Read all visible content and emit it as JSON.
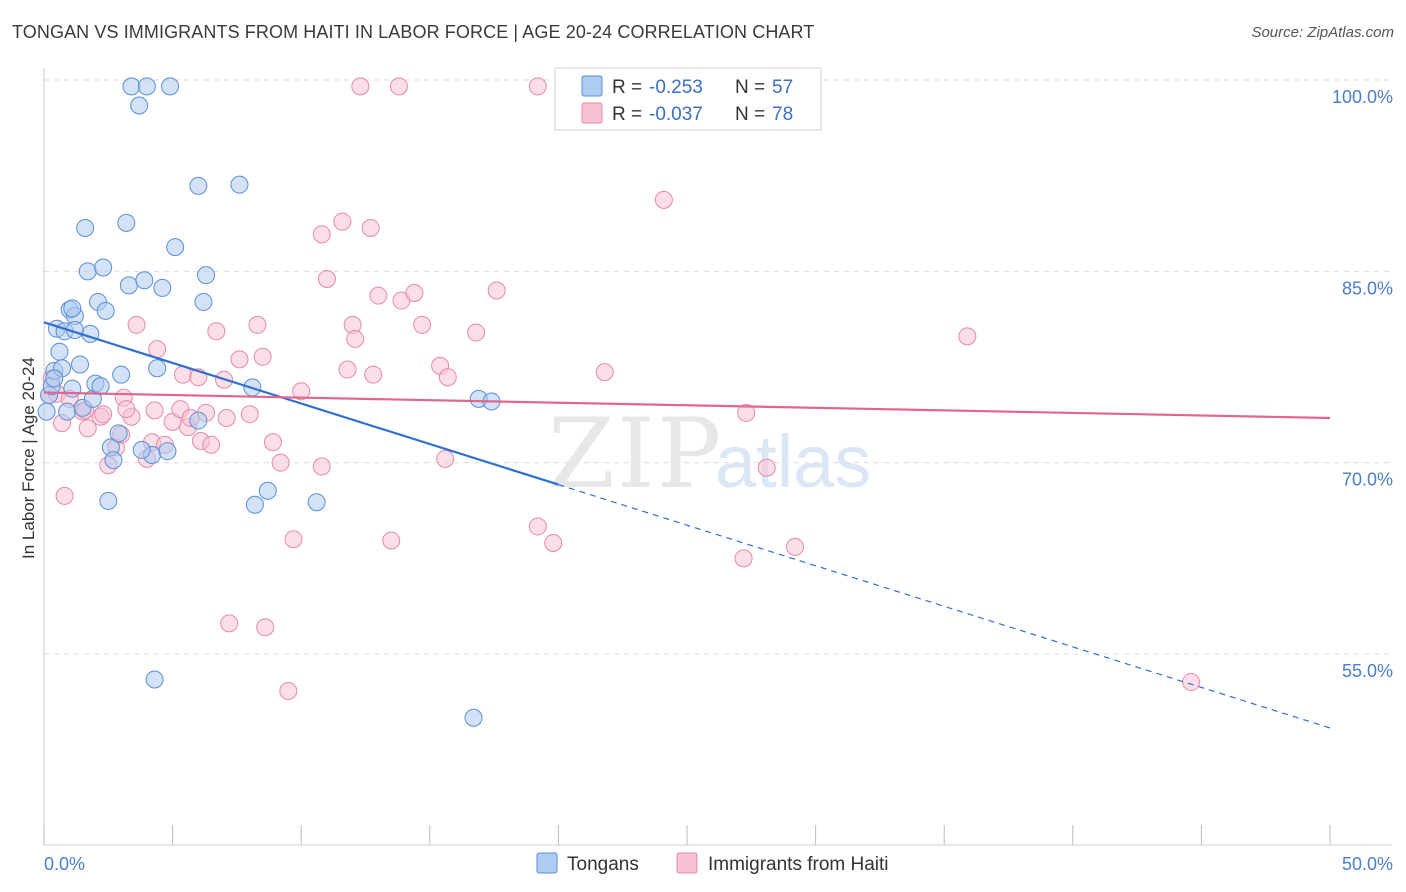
{
  "title": "TONGAN VS IMMIGRANTS FROM HAITI IN LABOR FORCE | AGE 20-24 CORRELATION CHART",
  "source": "Source: ZipAtlas.com",
  "watermark": {
    "zip": "ZIP",
    "atlas": "atlas"
  },
  "legend_box": {
    "rows": [
      {
        "r_label": "R = ",
        "r_value": "-0.253",
        "n_label": "N = ",
        "n_value": "57"
      },
      {
        "r_label": "R = ",
        "r_value": "-0.037",
        "n_label": "N = ",
        "n_value": "78"
      }
    ]
  },
  "bottom_legend": [
    "Tongans",
    "Immigrants from Haiti"
  ],
  "colors": {
    "blue_fill": "#aecbf0",
    "blue_stroke": "#5b8fd6",
    "blue_line": "#2f6fd0",
    "pink_fill": "#f7c3d3",
    "pink_stroke": "#e68aa8",
    "pink_line": "#e0668e",
    "tick_text": "#4a7ec9",
    "grid": "#dcdcdc"
  },
  "chart_data": {
    "type": "scatter",
    "title": "TONGAN VS IMMIGRANTS FROM HAITI IN LABOR FORCE | AGE 20-24 CORRELATION CHART",
    "xlabel": "",
    "ylabel": "In Labor Force | Age 20-24",
    "xlim": [
      0,
      50
    ],
    "ylim": [
      35,
      102
    ],
    "x_tick_labels": [
      "0.0%",
      "50.0%"
    ],
    "y_ticks": [
      55,
      70,
      85,
      100
    ],
    "y_tick_labels": [
      "55.0%",
      "70.0%",
      "85.0%",
      "100.0%"
    ],
    "grid": true,
    "legend_position": "top-center",
    "series": [
      {
        "name": "Tongans",
        "color": "#aecbf0",
        "r": -0.253,
        "n": 57,
        "trend": {
          "x0": 0,
          "y0": 81.0,
          "x_solid_end": 20,
          "x1": 50,
          "y1": 49.2
        },
        "points": [
          [
            0.1,
            74.0
          ],
          [
            0.2,
            75.3
          ],
          [
            0.3,
            76.0
          ],
          [
            0.4,
            77.2
          ],
          [
            0.5,
            80.5
          ],
          [
            0.6,
            78.7
          ],
          [
            0.8,
            80.3
          ],
          [
            0.9,
            74.0
          ],
          [
            1.0,
            82.0
          ],
          [
            1.1,
            75.8
          ],
          [
            1.2,
            81.5
          ],
          [
            1.4,
            77.7
          ],
          [
            1.5,
            74.3
          ],
          [
            1.7,
            85.0
          ],
          [
            1.8,
            80.1
          ],
          [
            1.9,
            75.0
          ],
          [
            2.0,
            76.2
          ],
          [
            2.1,
            82.6
          ],
          [
            2.2,
            76.0
          ],
          [
            2.3,
            85.3
          ],
          [
            2.4,
            81.9
          ],
          [
            2.6,
            71.2
          ],
          [
            2.7,
            70.2
          ],
          [
            3.0,
            76.9
          ],
          [
            3.2,
            88.8
          ],
          [
            3.3,
            83.9
          ],
          [
            3.4,
            99.5
          ],
          [
            3.7,
            98.0
          ],
          [
            3.9,
            84.3
          ],
          [
            4.0,
            99.5
          ],
          [
            4.2,
            70.6
          ],
          [
            4.4,
            77.4
          ],
          [
            4.6,
            83.7
          ],
          [
            4.8,
            70.9
          ],
          [
            4.9,
            99.5
          ],
          [
            5.1,
            86.9
          ],
          [
            6.0,
            73.3
          ],
          [
            6.0,
            91.7
          ],
          [
            6.2,
            82.6
          ],
          [
            6.3,
            84.7
          ],
          [
            7.6,
            91.8
          ],
          [
            8.1,
            75.9
          ],
          [
            8.2,
            66.7
          ],
          [
            8.7,
            67.8
          ],
          [
            10.6,
            66.9
          ],
          [
            16.9,
            75.0
          ],
          [
            17.4,
            74.8
          ],
          [
            4.3,
            53.0
          ],
          [
            16.7,
            50.0
          ],
          [
            1.2,
            80.4
          ],
          [
            0.7,
            77.4
          ],
          [
            2.5,
            67.0
          ],
          [
            1.6,
            88.4
          ],
          [
            2.9,
            72.3
          ],
          [
            0.4,
            76.6
          ],
          [
            3.8,
            71.0
          ],
          [
            1.1,
            82.1
          ]
        ]
      },
      {
        "name": "Immigrants from Haiti",
        "color": "#f7c3d3",
        "r": -0.037,
        "n": 78,
        "trend": {
          "x0": 0,
          "y0": 75.5,
          "x1": 50,
          "y1": 73.5
        },
        "points": [
          [
            0.2,
            75.3
          ],
          [
            0.3,
            76.6
          ],
          [
            0.5,
            75.4
          ],
          [
            0.7,
            73.1
          ],
          [
            0.8,
            67.4
          ],
          [
            1.0,
            75.0
          ],
          [
            1.5,
            74.0
          ],
          [
            1.7,
            72.7
          ],
          [
            2.2,
            73.6
          ],
          [
            2.5,
            69.8
          ],
          [
            2.8,
            71.2
          ],
          [
            3.0,
            72.2
          ],
          [
            3.1,
            75.1
          ],
          [
            3.4,
            73.6
          ],
          [
            3.6,
            80.8
          ],
          [
            4.0,
            70.3
          ],
          [
            4.2,
            71.6
          ],
          [
            4.3,
            74.1
          ],
          [
            4.4,
            78.9
          ],
          [
            4.7,
            71.4
          ],
          [
            5.0,
            73.2
          ],
          [
            5.3,
            74.2
          ],
          [
            5.4,
            76.9
          ],
          [
            5.6,
            72.8
          ],
          [
            5.7,
            73.5
          ],
          [
            6.0,
            76.7
          ],
          [
            6.1,
            71.7
          ],
          [
            6.3,
            73.9
          ],
          [
            6.5,
            71.4
          ],
          [
            6.7,
            80.3
          ],
          [
            7.0,
            76.5
          ],
          [
            7.1,
            73.5
          ],
          [
            7.2,
            57.4
          ],
          [
            7.6,
            78.1
          ],
          [
            8.0,
            73.8
          ],
          [
            8.3,
            80.8
          ],
          [
            8.5,
            78.3
          ],
          [
            8.6,
            57.1
          ],
          [
            8.9,
            71.6
          ],
          [
            9.2,
            70.0
          ],
          [
            9.5,
            52.1
          ],
          [
            9.7,
            64.0
          ],
          [
            10.0,
            75.6
          ],
          [
            10.8,
            69.7
          ],
          [
            10.8,
            87.9
          ],
          [
            11.0,
            84.4
          ],
          [
            11.6,
            88.9
          ],
          [
            11.8,
            77.3
          ],
          [
            12.0,
            80.8
          ],
          [
            12.1,
            79.7
          ],
          [
            12.3,
            99.5
          ],
          [
            12.7,
            88.4
          ],
          [
            12.8,
            76.9
          ],
          [
            13.0,
            83.1
          ],
          [
            13.5,
            63.9
          ],
          [
            13.8,
            99.5
          ],
          [
            13.9,
            82.7
          ],
          [
            14.4,
            83.3
          ],
          [
            14.7,
            80.8
          ],
          [
            15.4,
            77.6
          ],
          [
            15.6,
            70.3
          ],
          [
            15.7,
            76.7
          ],
          [
            16.8,
            80.2
          ],
          [
            17.6,
            83.5
          ],
          [
            19.2,
            99.5
          ],
          [
            19.2,
            65.0
          ],
          [
            19.8,
            63.7
          ],
          [
            21.8,
            77.1
          ],
          [
            24.1,
            90.6
          ],
          [
            27.2,
            62.5
          ],
          [
            27.3,
            73.9
          ],
          [
            28.1,
            69.6
          ],
          [
            29.2,
            63.4
          ],
          [
            35.9,
            79.9
          ],
          [
            44.6,
            52.8
          ],
          [
            2.3,
            73.8
          ],
          [
            3.2,
            74.2
          ],
          [
            1.6,
            74.1
          ]
        ]
      }
    ]
  }
}
